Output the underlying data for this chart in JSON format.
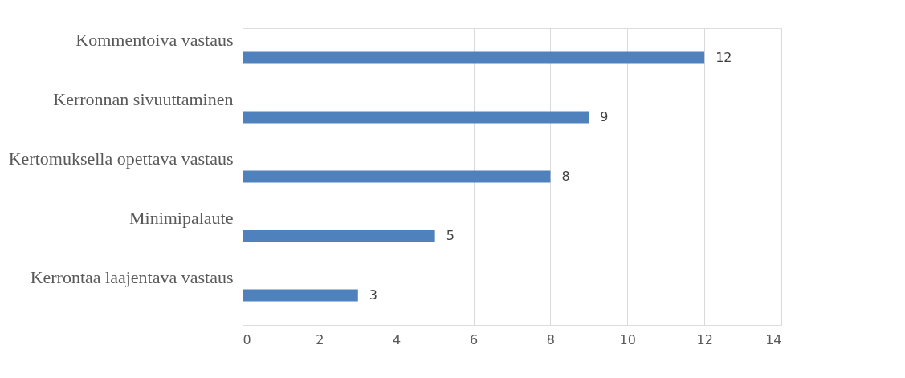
{
  "chart_data": {
    "type": "bar",
    "orientation": "horizontal",
    "categories": [
      "Kommentoiva vastaus",
      "Kerronnan sivuuttaminen",
      "Kertomuksella opettava vastaus",
      "Minimipalaute",
      "Kerrontaa laajentava vastaus"
    ],
    "values": [
      12,
      9,
      8,
      5,
      3
    ],
    "color": "#4f81bd",
    "xlim": [
      0,
      14
    ],
    "xticks": [
      0,
      2,
      4,
      6,
      8,
      10,
      12,
      14
    ],
    "grid": "x",
    "data_labels": true
  }
}
